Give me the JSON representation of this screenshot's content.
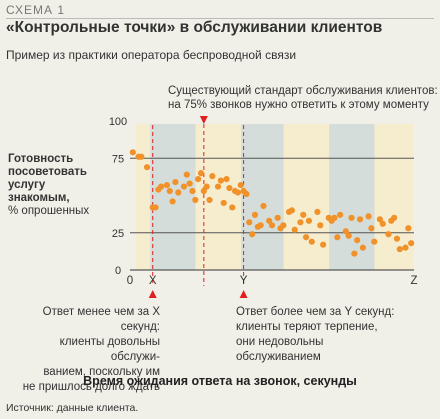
{
  "header": {
    "scheme_label": "СХЕМА 1",
    "title": "«Контрольные точки» в обслуживании клиентов",
    "subtitle": "Пример из практики оператора беспроводной связи"
  },
  "callout": {
    "line1": "Существующий стандарт обслуживания клиентов:",
    "line2": "на 75% звонков нужно ответить к этому моменту"
  },
  "y_axis_label": {
    "bold_line1": "Готовность",
    "bold_line2": "посоветовать",
    "bold_line3": "услугу",
    "bold_line4": "знакомым,",
    "normal_line": "% опрошенных"
  },
  "notes": {
    "left_line1": "Ответ менее чем за X секунд:",
    "left_line2": "клиенты довольны обслужи-",
    "left_line3": "ванием, поскольку им",
    "left_line4": "не пришлось долго ждать",
    "right_line1": "Ответ более чем за Y секунд:",
    "right_line2": "клиенты теряют терпение,",
    "right_line3": "они недовольны",
    "right_line4": "обслуживанием"
  },
  "x_axis_title": "Время ожидания ответа на звонок, секунды",
  "source": "Источник: данные клиента.",
  "colors": {
    "background": "#f0efe8",
    "band_cream": "#f6edcf",
    "band_blue": "#d5dddb",
    "points": "#f0912a",
    "markers": "#e0201e",
    "axis": "#333333"
  },
  "chart_data": {
    "type": "scatter",
    "yticks": [
      "0",
      "25",
      "75",
      "100"
    ],
    "ylim": [
      0,
      100
    ],
    "xlim": [
      0,
      100
    ],
    "xtick_labels": [
      {
        "label": "0",
        "x": 0
      },
      {
        "label": "X",
        "x": 8
      },
      {
        "label": "Y",
        "x": 40
      },
      {
        "label": "Z",
        "x": 100
      }
    ],
    "thresholds": [
      {
        "name": "X",
        "x": 8
      },
      {
        "name": "Y",
        "x": 40
      },
      {
        "name": "standard_75",
        "x": 26
      }
    ],
    "reference_lines_y": [
      25,
      75
    ],
    "points": [
      [
        1,
        79
      ],
      [
        3,
        76
      ],
      [
        4,
        76
      ],
      [
        6,
        69
      ],
      [
        8,
        42
      ],
      [
        9,
        42
      ],
      [
        10,
        54
      ],
      [
        11,
        56
      ],
      [
        13,
        57
      ],
      [
        14,
        53
      ],
      [
        15,
        46
      ],
      [
        16,
        59
      ],
      [
        17,
        52
      ],
      [
        19,
        56
      ],
      [
        20,
        64
      ],
      [
        21,
        58
      ],
      [
        22,
        53
      ],
      [
        23,
        47
      ],
      [
        24,
        61
      ],
      [
        25,
        65
      ],
      [
        26,
        53
      ],
      [
        27,
        56
      ],
      [
        28,
        47
      ],
      [
        29,
        63
      ],
      [
        31,
        56
      ],
      [
        32,
        60
      ],
      [
        33,
        45
      ],
      [
        34,
        61
      ],
      [
        35,
        55
      ],
      [
        36,
        42
      ],
      [
        37,
        53
      ],
      [
        38,
        52
      ],
      [
        39,
        57
      ],
      [
        40,
        53
      ],
      [
        41,
        51
      ],
      [
        42,
        32
      ],
      [
        43,
        24
      ],
      [
        44,
        37
      ],
      [
        45,
        29
      ],
      [
        46,
        30
      ],
      [
        47,
        43
      ],
      [
        49,
        33
      ],
      [
        50,
        30
      ],
      [
        52,
        35
      ],
      [
        53,
        28
      ],
      [
        54,
        30
      ],
      [
        56,
        39
      ],
      [
        57,
        40
      ],
      [
        58,
        27
      ],
      [
        60,
        32
      ],
      [
        61,
        37
      ],
      [
        62,
        22
      ],
      [
        63,
        33
      ],
      [
        64,
        19
      ],
      [
        66,
        39
      ],
      [
        67,
        30
      ],
      [
        68,
        17
      ],
      [
        70,
        35
      ],
      [
        71,
        33
      ],
      [
        72,
        35
      ],
      [
        73,
        22
      ],
      [
        74,
        37
      ],
      [
        76,
        26
      ],
      [
        77,
        23
      ],
      [
        78,
        35
      ],
      [
        79,
        11
      ],
      [
        80,
        20
      ],
      [
        81,
        34
      ],
      [
        82,
        15
      ],
      [
        84,
        36
      ],
      [
        85,
        28
      ],
      [
        86,
        19
      ],
      [
        88,
        34
      ],
      [
        89,
        31
      ],
      [
        91,
        24
      ],
      [
        92,
        33
      ],
      [
        93,
        35
      ],
      [
        94,
        21
      ],
      [
        95,
        14
      ],
      [
        97,
        15
      ],
      [
        98,
        28
      ],
      [
        99,
        18
      ]
    ],
    "grid": false,
    "legend": "none"
  }
}
